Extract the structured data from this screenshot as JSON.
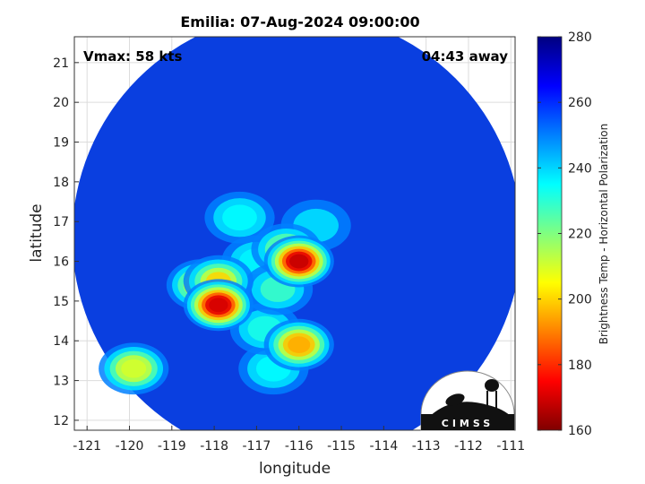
{
  "chart_data": {
    "type": "heatmap",
    "title": "Emilia: 07-Aug-2024 09:00:00",
    "xlabel": "longitude",
    "ylabel": "latitude",
    "xlim": [
      -121.3,
      -110.9
    ],
    "ylim": [
      11.75,
      21.65
    ],
    "xticks": [
      -121,
      -120,
      -119,
      -118,
      -117,
      -116,
      -115,
      -114,
      -113,
      -112,
      -111
    ],
    "yticks": [
      12,
      13,
      14,
      15,
      16,
      17,
      18,
      19,
      20,
      21
    ],
    "grid": true,
    "annotations": {
      "vmax": "Vmax: 58 kts",
      "time_away": "04:43 away"
    },
    "colorbar": {
      "label": "Brightness Temp - Horizontal Polarization",
      "range": [
        160,
        280
      ],
      "ticks": [
        160,
        180,
        200,
        220,
        240,
        260,
        280
      ]
    },
    "swath": {
      "center_lon": -116.05,
      "center_lat": 16.6,
      "radius_deg": 5.3
    },
    "cold_features": [
      {
        "lon": -116.0,
        "lat": 16.0,
        "tb": 168
      },
      {
        "lon": -117.9,
        "lat": 14.9,
        "tb": 170
      },
      {
        "lon": -116.0,
        "lat": 13.9,
        "tb": 195
      },
      {
        "lon": -116.3,
        "lat": 16.3,
        "tb": 215
      },
      {
        "lon": -118.3,
        "lat": 15.4,
        "tb": 205
      },
      {
        "lon": -117.9,
        "lat": 15.5,
        "tb": 200
      },
      {
        "lon": -119.9,
        "lat": 13.3,
        "tb": 210
      },
      {
        "lon": -116.5,
        "lat": 15.3,
        "tb": 228
      },
      {
        "lon": -116.8,
        "lat": 14.3,
        "tb": 232
      },
      {
        "lon": -116.6,
        "lat": 13.3,
        "tb": 235
      },
      {
        "lon": -117.4,
        "lat": 17.1,
        "tb": 235
      },
      {
        "lon": -117.0,
        "lat": 16.0,
        "tb": 236
      },
      {
        "lon": -115.6,
        "lat": 16.9,
        "tb": 238
      }
    ],
    "logo": "CIMSS"
  }
}
